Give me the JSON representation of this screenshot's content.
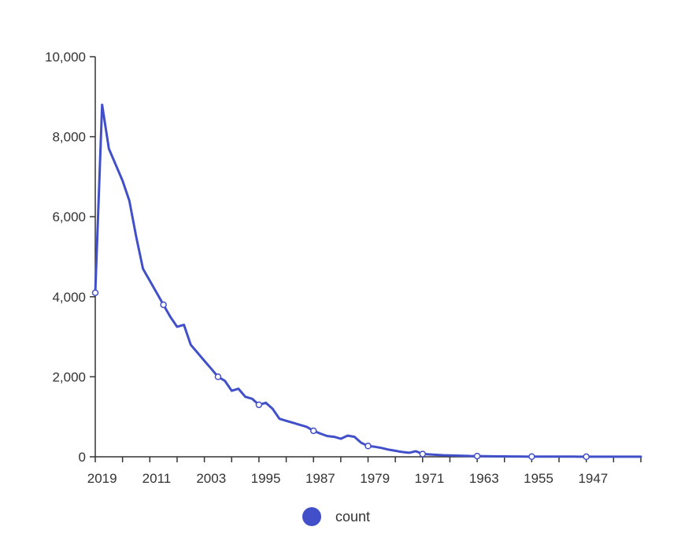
{
  "chart_data": {
    "type": "line",
    "x_reversed": true,
    "x_ticks": [
      "2019",
      "2011",
      "2003",
      "1995",
      "1987",
      "1979",
      "1971",
      "1963",
      "1955",
      "1947"
    ],
    "y_ticks": [
      "0",
      "2,000",
      "4,000",
      "6,000",
      "8,000",
      "10,000"
    ],
    "ylim": [
      0,
      10000
    ],
    "xlim": [
      1940,
      2020
    ],
    "grid": false,
    "legend": {
      "position": "bottom",
      "marker": "circle"
    },
    "colors": {
      "series": "#4150c8",
      "axis": "#333333"
    },
    "series": [
      {
        "name": "count",
        "x": [
          2020,
          2019,
          2018,
          2017,
          2016,
          2015,
          2014,
          2013,
          2012,
          2011,
          2010,
          2009,
          2008,
          2007,
          2006,
          2005,
          2004,
          2003,
          2002,
          2001,
          2000,
          1999,
          1998,
          1997,
          1996,
          1995,
          1994,
          1993,
          1992,
          1991,
          1990,
          1989,
          1988,
          1987,
          1986,
          1985,
          1984,
          1983,
          1982,
          1981,
          1980,
          1979,
          1978,
          1977,
          1976,
          1975,
          1974,
          1973,
          1972,
          1971,
          1970,
          1969,
          1968,
          1967,
          1966,
          1965,
          1964,
          1963,
          1962,
          1961,
          1960,
          1959,
          1958,
          1957,
          1956,
          1955,
          1954,
          1953,
          1952,
          1951,
          1950,
          1949,
          1948,
          1947,
          1946,
          1945,
          1944,
          1943,
          1942,
          1941,
          1940
        ],
        "y": [
          4100,
          8800,
          7700,
          7300,
          6900,
          6400,
          5500,
          4700,
          4400,
          4100,
          3800,
          3500,
          3250,
          3300,
          2800,
          2600,
          2400,
          2200,
          2000,
          1900,
          1650,
          1700,
          1500,
          1450,
          1300,
          1350,
          1200,
          950,
          900,
          850,
          800,
          750,
          650,
          580,
          520,
          500,
          450,
          530,
          500,
          350,
          270,
          250,
          220,
          180,
          150,
          120,
          100,
          140,
          70,
          60,
          50,
          40,
          35,
          30,
          25,
          20,
          18,
          15,
          12,
          10,
          9,
          8,
          7,
          6,
          5,
          5,
          4,
          4,
          3,
          3,
          3,
          2,
          2,
          2,
          2,
          1,
          1,
          1,
          1,
          1,
          1
        ],
        "markers_at": [
          2020,
          2010,
          2002,
          1996,
          1988,
          1980,
          1972,
          1964,
          1956,
          1948
        ]
      }
    ]
  }
}
